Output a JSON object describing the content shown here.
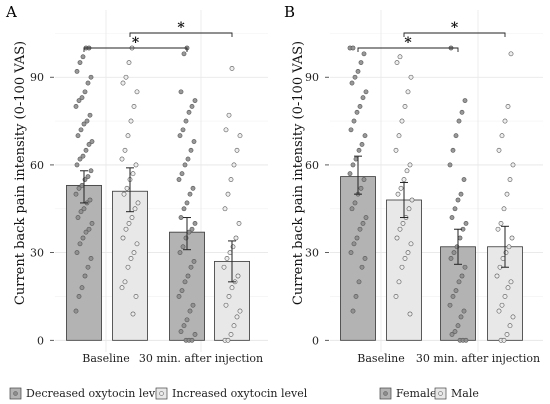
{
  "chart_data": [
    {
      "panel": "A",
      "type": "bar",
      "ylabel": "Current back pain intensity (0-100 VAS)",
      "ylim": [
        -4,
        113
      ],
      "yticks": [
        "0",
        "30",
        "60",
        "90"
      ],
      "categories": [
        "Baseline",
        "30 min. after injection"
      ],
      "series": [
        {
          "name": "Decreased oxytocin level",
          "color": "#b3b3b3",
          "values": [
            53,
            37
          ],
          "ci": [
            [
              47,
              58
            ],
            [
              31,
              42
            ]
          ],
          "points": [
            [
              10,
              15,
              18,
              22,
              25,
              28,
              30,
              33,
              35,
              37,
              38,
              40,
              42,
              44,
              45,
              47,
              48,
              50,
              52,
              53,
              55,
              56,
              58,
              60,
              62,
              63,
              65,
              67,
              68,
              70,
              72,
              74,
              75,
              77,
              80,
              82,
              83,
              85,
              88,
              90,
              92,
              95,
              97,
              100,
              100
            ],
            [
              0,
              0,
              0,
              2,
              3,
              5,
              7,
              10,
              12,
              15,
              17,
              20,
              22,
              25,
              27,
              30,
              32,
              35,
              37,
              38,
              40,
              42,
              45,
              47,
              50,
              52,
              55,
              57,
              60,
              62,
              65,
              68,
              70,
              72,
              75,
              78,
              80,
              82,
              85,
              98,
              100
            ]
          ]
        },
        {
          "name": "Increased oxytocin level",
          "color": "#e8e8e8",
          "values": [
            51,
            27
          ],
          "ci": [
            [
              44,
              59
            ],
            [
              20,
              34
            ]
          ],
          "points": [
            [
              9,
              15,
              18,
              20,
              25,
              28,
              30,
              33,
              35,
              38,
              40,
              42,
              45,
              47,
              50,
              52,
              55,
              57,
              60,
              62,
              65,
              70,
              75,
              80,
              85,
              88,
              90,
              95,
              100
            ],
            [
              0,
              0,
              2,
              5,
              8,
              10,
              12,
              15,
              18,
              20,
              22,
              25,
              28,
              30,
              32,
              35,
              40,
              45,
              50,
              55,
              60,
              65,
              70,
              72,
              77,
              93
            ]
          ]
        }
      ],
      "annotations": [
        {
          "pair": [
            "Decreased oxytocin level Baseline",
            "Decreased oxytocin level 30 min."
          ],
          "label": "*"
        },
        {
          "pair": [
            "Increased oxytocin level Baseline",
            "Increased oxytocin level 30 min."
          ],
          "label": "*"
        }
      ],
      "legend": [
        "Decreased oxytocin level",
        "Increased oxytocin level"
      ],
      "legend_position": "bottom",
      "grid": true
    },
    {
      "panel": "B",
      "type": "bar",
      "ylabel": "Current back pain intensity (0-100 VAS)",
      "ylim": [
        -4,
        113
      ],
      "yticks": [
        "0",
        "30",
        "60",
        "90"
      ],
      "categories": [
        "Baseline",
        "30 min. after injection"
      ],
      "series": [
        {
          "name": "Female",
          "color": "#b3b3b3",
          "values": [
            56,
            32
          ],
          "ci": [
            [
              50,
              63
            ],
            [
              26,
              38
            ]
          ],
          "points": [
            [
              10,
              15,
              20,
              25,
              28,
              30,
              33,
              35,
              38,
              40,
              42,
              45,
              47,
              50,
              52,
              55,
              57,
              60,
              62,
              65,
              67,
              70,
              72,
              75,
              78,
              80,
              83,
              85,
              88,
              90,
              92,
              95,
              98,
              100,
              100
            ],
            [
              0,
              0,
              0,
              2,
              3,
              5,
              8,
              10,
              12,
              15,
              17,
              20,
              22,
              25,
              28,
              30,
              32,
              35,
              38,
              40,
              42,
              45,
              48,
              50,
              55,
              60,
              65,
              70,
              75,
              78,
              82,
              100
            ]
          ]
        },
        {
          "name": "Male",
          "color": "#e8e8e8",
          "values": [
            48,
            32
          ],
          "ci": [
            [
              42,
              54
            ],
            [
              25,
              39
            ]
          ],
          "points": [
            [
              9,
              15,
              20,
              25,
              28,
              30,
              33,
              35,
              38,
              40,
              42,
              45,
              48,
              50,
              52,
              55,
              58,
              60,
              65,
              70,
              75,
              80,
              85,
              90,
              95,
              97
            ],
            [
              0,
              0,
              2,
              5,
              8,
              10,
              12,
              15,
              18,
              20,
              22,
              25,
              28,
              30,
              32,
              35,
              38,
              40,
              45,
              50,
              55,
              60,
              65,
              70,
              75,
              80,
              98
            ]
          ]
        }
      ],
      "annotations": [
        {
          "pair": [
            "Female Baseline",
            "Female 30 min."
          ],
          "label": "*"
        },
        {
          "pair": [
            "Male Baseline",
            "Male 30 min."
          ],
          "label": "*"
        }
      ],
      "legend": [
        "Female",
        "Male"
      ],
      "legend_position": "bottom",
      "grid": true
    }
  ]
}
